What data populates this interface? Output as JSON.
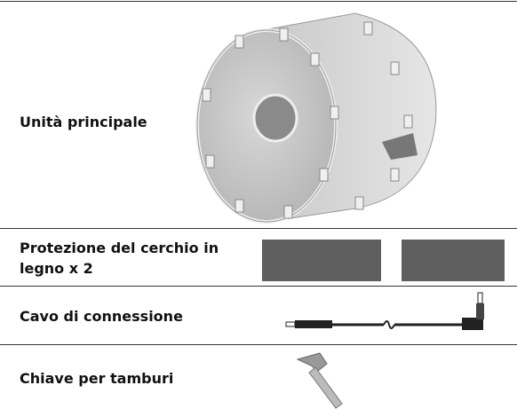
{
  "table": {
    "rows": [
      {
        "label": "Unità principale"
      },
      {
        "label": "Protezione del cerchio in legno x 2"
      },
      {
        "label": "Cavo di connessione"
      },
      {
        "label": "Chiave per tamburi"
      }
    ]
  }
}
